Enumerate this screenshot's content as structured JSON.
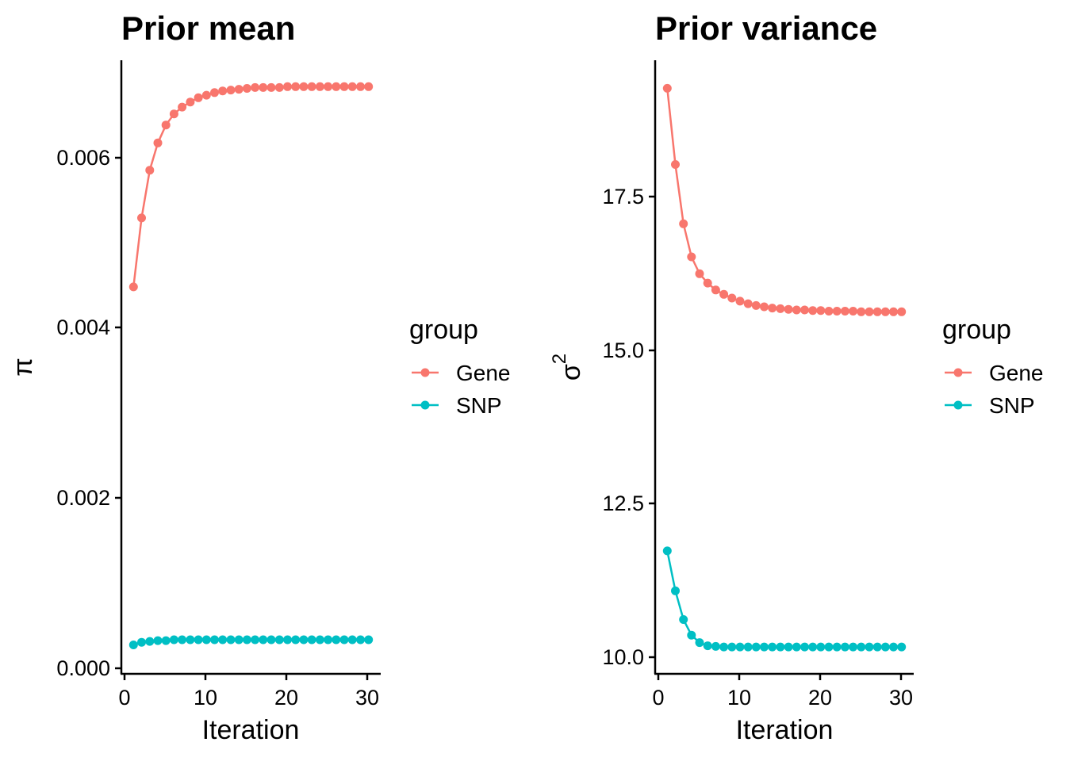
{
  "chart_data": [
    {
      "type": "line",
      "title": "Prior mean",
      "xlabel": "Iteration",
      "ylabel": "π",
      "xlim": [
        -0.5,
        31.5
      ],
      "ylim": [
        -8e-05,
        0.00712
      ],
      "xticks": [
        0,
        10,
        20,
        30
      ],
      "xtick_labels": [
        "0",
        "10",
        "20",
        "30"
      ],
      "yticks": [
        0,
        0.002,
        0.004,
        0.006
      ],
      "ytick_labels": [
        "0.000",
        "0.002",
        "0.004",
        "0.006"
      ],
      "grid": false,
      "legend": {
        "title": "group",
        "placement": "right"
      },
      "x": [
        1,
        2,
        3,
        4,
        5,
        6,
        7,
        8,
        9,
        10,
        11,
        12,
        13,
        14,
        15,
        16,
        17,
        18,
        19,
        20,
        21,
        22,
        23,
        24,
        25,
        26,
        27,
        28,
        29,
        30
      ],
      "series": [
        {
          "name": "Gene",
          "color": "#F8766D",
          "values": [
            0.00446,
            0.00527,
            0.00583,
            0.00615,
            0.00636,
            0.00649,
            0.00657,
            0.00663,
            0.00668,
            0.00671,
            0.00674,
            0.00676,
            0.00677,
            0.00678,
            0.00679,
            0.0068,
            0.0068,
            0.0068,
            0.0068,
            0.00681,
            0.00681,
            0.00681,
            0.00681,
            0.00681,
            0.00681,
            0.00681,
            0.00681,
            0.00681,
            0.00681,
            0.00681
          ]
        },
        {
          "name": "SNP",
          "color": "#00BFC4",
          "values": [
            0.00026,
            0.00029,
            0.0003,
            0.00031,
            0.00031,
            0.00032,
            0.00032,
            0.00032,
            0.00032,
            0.00032,
            0.00032,
            0.00032,
            0.00032,
            0.00032,
            0.00032,
            0.00032,
            0.00032,
            0.00032,
            0.00032,
            0.00032,
            0.00032,
            0.00032,
            0.00032,
            0.00032,
            0.00032,
            0.00032,
            0.00032,
            0.00032,
            0.00032,
            0.00032
          ]
        }
      ]
    },
    {
      "type": "line",
      "title": "Prior variance",
      "xlabel": "Iteration",
      "ylabel": "σ",
      "ylabel_superscript": "2",
      "xlim": [
        -0.5,
        31.5
      ],
      "ylim": [
        9.77,
        19.6
      ],
      "xticks": [
        0,
        10,
        20,
        30
      ],
      "xtick_labels": [
        "0",
        "10",
        "20",
        "30"
      ],
      "yticks": [
        10,
        12.5,
        15,
        17.5
      ],
      "ytick_labels": [
        "10.0",
        "12.5",
        "15.0",
        "17.5"
      ],
      "grid": false,
      "legend": {
        "title": "group",
        "placement": "right"
      },
      "x": [
        1,
        2,
        3,
        4,
        5,
        6,
        7,
        8,
        9,
        10,
        11,
        12,
        13,
        14,
        15,
        16,
        17,
        18,
        19,
        20,
        21,
        22,
        23,
        24,
        25,
        26,
        27,
        28,
        29,
        30
      ],
      "series": [
        {
          "name": "Gene",
          "color": "#F8766D",
          "values": [
            19.15,
            17.93,
            16.98,
            16.45,
            16.18,
            16.03,
            15.92,
            15.85,
            15.79,
            15.74,
            15.7,
            15.67,
            15.65,
            15.63,
            15.62,
            15.61,
            15.6,
            15.6,
            15.59,
            15.59,
            15.58,
            15.58,
            15.58,
            15.58,
            15.57,
            15.57,
            15.57,
            15.57,
            15.57,
            15.57
          ]
        },
        {
          "name": "SNP",
          "color": "#00BFC4",
          "values": [
            11.74,
            11.1,
            10.64,
            10.39,
            10.27,
            10.22,
            10.21,
            10.2,
            10.2,
            10.2,
            10.2,
            10.2,
            10.2,
            10.2,
            10.2,
            10.2,
            10.2,
            10.2,
            10.2,
            10.2,
            10.2,
            10.2,
            10.2,
            10.2,
            10.2,
            10.2,
            10.2,
            10.2,
            10.2,
            10.2
          ]
        }
      ]
    }
  ]
}
